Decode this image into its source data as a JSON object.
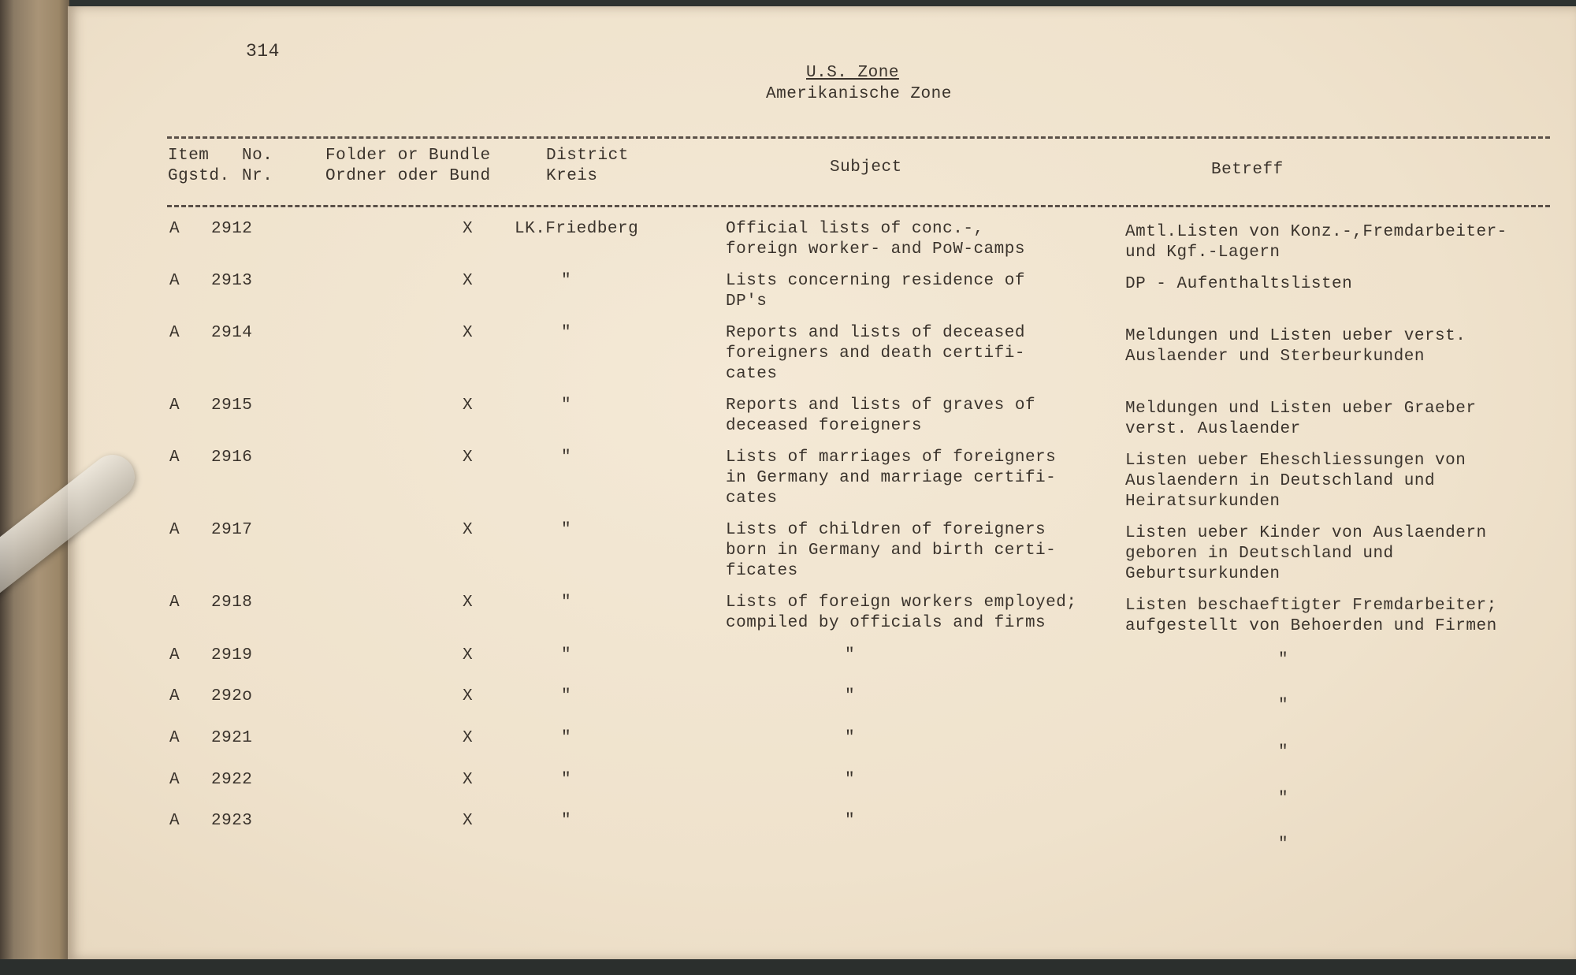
{
  "page_number": "314",
  "title": "U.S. Zone",
  "subtitle": "Amerikanische Zone",
  "headers": {
    "item": "Item\nGgstd.",
    "no": "No.\nNr.",
    "folder": "Folder or Bundle\nOrdner oder Bund",
    "district": "District\nKreis",
    "subject": "Subject",
    "betreff": "Betreff"
  },
  "rows": [
    {
      "item": "A",
      "no": "2912",
      "folder": "X",
      "district": "LK.Friedberg",
      "subject": "Official lists of conc.-,\nforeign worker- and PoW-camps",
      "betreff": "Amtl.Listen von Konz.-,Fremdarbeiter-\nund Kgf.-Lagern"
    },
    {
      "item": "A",
      "no": "2913",
      "folder": "X",
      "district": "\"",
      "subject": "Lists concerning residence of\nDP's",
      "betreff": "DP - Aufenthaltslisten"
    },
    {
      "item": "A",
      "no": "2914",
      "folder": "X",
      "district": "\"",
      "subject": "Reports and lists of deceased\nforeigners and death certifi-\ncates",
      "betreff": "Meldungen und Listen ueber verst.\nAuslaender und Sterbeurkunden"
    },
    {
      "item": "A",
      "no": "2915",
      "folder": "X",
      "district": "\"",
      "subject": "Reports and lists of graves of\ndeceased foreigners",
      "betreff": "Meldungen und Listen ueber Graeber\nverst. Auslaender"
    },
    {
      "item": "A",
      "no": "2916",
      "folder": "X",
      "district": "\"",
      "subject": "Lists of marriages of foreigners\nin Germany and marriage certifi-\ncates",
      "betreff": "Listen ueber Eheschliessungen von\nAuslaendern in Deutschland und\nHeiratsurkunden"
    },
    {
      "item": "A",
      "no": "2917",
      "folder": "X",
      "district": "\"",
      "subject": "Lists of children of foreigners\nborn in Germany and birth certi-\nficates",
      "betreff": "Listen ueber Kinder von Auslaendern\ngeboren in Deutschland und\nGeburtsurkunden"
    },
    {
      "item": "A",
      "no": "2918",
      "folder": "X",
      "district": "\"",
      "subject": "Lists of foreign workers employed;\ncompiled by officials and firms",
      "betreff": "Listen beschaeftigter Fremdarbeiter;\naufgestellt von Behoerden und Firmen"
    },
    {
      "item": "A",
      "no": "2919",
      "folder": "X",
      "district": "\"",
      "subject": "\"",
      "betreff": "\""
    },
    {
      "item": "A",
      "no": "292o",
      "folder": "X",
      "district": "\"",
      "subject": "\"",
      "betreff": "\""
    },
    {
      "item": "A",
      "no": "2921",
      "folder": "X",
      "district": "\"",
      "subject": "\"",
      "betreff": "\""
    },
    {
      "item": "A",
      "no": "2922",
      "folder": "X",
      "district": "\"",
      "subject": "\"",
      "betreff": "\""
    },
    {
      "item": "A",
      "no": "2923",
      "folder": "X",
      "district": "\"",
      "subject": "\"",
      "betreff": "\""
    }
  ]
}
